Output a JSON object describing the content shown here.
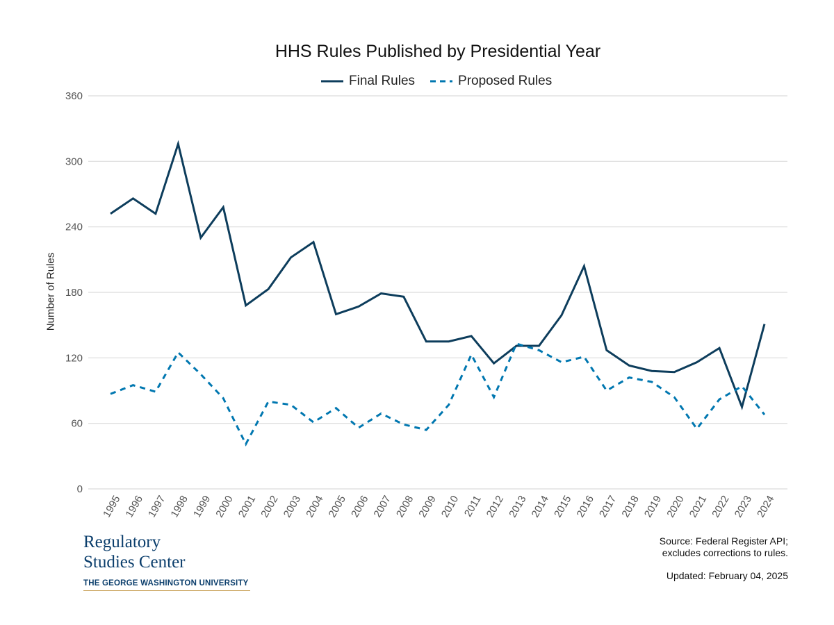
{
  "chart_data": {
    "type": "line",
    "title": "HHS Rules Published by Presidential Year",
    "ylabel": "Number of Rules",
    "xlabel": "",
    "ylim": [
      0,
      360
    ],
    "yticks": [
      0,
      60,
      120,
      180,
      240,
      300,
      360
    ],
    "grid": true,
    "legend_position": "top-center",
    "x": [
      "1995",
      "1996",
      "1997",
      "1998",
      "1999",
      "2000",
      "2001",
      "2002",
      "2003",
      "2004",
      "2005",
      "2006",
      "2007",
      "2008",
      "2009",
      "2010",
      "2011",
      "2012",
      "2013",
      "2014",
      "2015",
      "2016",
      "2017",
      "2018",
      "2019",
      "2020",
      "2021",
      "2022",
      "2023",
      "2024"
    ],
    "series": [
      {
        "name": "Final Rules",
        "style": "solid",
        "color": "#0d3d5c",
        "values": [
          252,
          266,
          252,
          316,
          230,
          258,
          168,
          183,
          212,
          226,
          160,
          167,
          179,
          176,
          135,
          135,
          140,
          115,
          131,
          131,
          159,
          204,
          127,
          113,
          108,
          107,
          116,
          129,
          75,
          151
        ]
      },
      {
        "name": "Proposed Rules",
        "style": "dashed",
        "color": "#0077b0",
        "values": [
          87,
          95,
          89,
          125,
          105,
          83,
          41,
          80,
          77,
          61,
          74,
          56,
          69,
          59,
          54,
          77,
          123,
          84,
          133,
          127,
          116,
          121,
          90,
          102,
          98,
          84,
          55,
          82,
          94,
          68
        ]
      }
    ]
  },
  "logo": {
    "line1": "Regulatory",
    "line2": "Studies Center",
    "line3": "THE GEORGE WASHINGTON UNIVERSITY"
  },
  "source": {
    "line1": "Source: Federal Register API;",
    "line2": "excludes corrections to rules."
  },
  "updated": "Updated: February 04, 2025"
}
